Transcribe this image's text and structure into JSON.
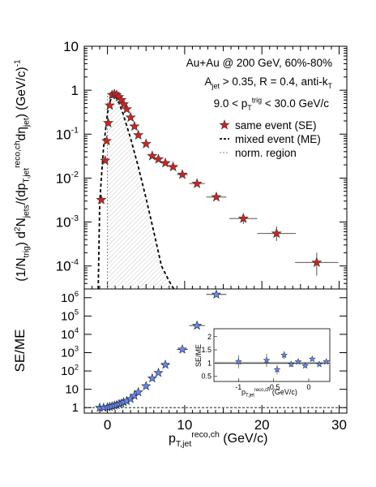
{
  "chart_data": [
    {
      "type": "scatter",
      "panel": "top",
      "yscale": "log",
      "xlim": [
        -3,
        31
      ],
      "ylim": [
        3e-05,
        10
      ],
      "ylabel": "(1/N_trig) d²N_jets/(dp_T,jet^reco,ch dη_jet) (GeV/c)^-1",
      "ytick_labels": [
        "10",
        "1",
        "10^-1",
        "10^-2",
        "10^-3",
        "10^-4"
      ],
      "annotations": [
        "Au+Au @ 200 GeV, 60%-80%",
        "A_jet > 0.35, R = 0.4, anti-k_T",
        "9.0 < p_T^trig < 30.0 GeV/c"
      ],
      "legend": {
        "placement": "top-right",
        "entries": [
          "same event (SE)",
          "mixed event (ME)",
          "norm. region"
        ]
      },
      "series": [
        {
          "name": "same event (SE)",
          "marker": "star",
          "color": "#d42020",
          "points": [
            {
              "x": -0.8,
              "y": 0.0032,
              "xerr": 0
            },
            {
              "x": -0.3,
              "y": 0.025,
              "xerr": 0
            },
            {
              "x": -0.1,
              "y": 0.07,
              "xerr": 0
            },
            {
              "x": 0.1,
              "y": 0.18,
              "xerr": 0
            },
            {
              "x": 0.3,
              "y": 0.45,
              "xerr": 0
            },
            {
              "x": 0.6,
              "y": 0.78,
              "xerr": 0
            },
            {
              "x": 0.9,
              "y": 0.82,
              "xerr": 0
            },
            {
              "x": 1.2,
              "y": 0.78,
              "xerr": 0
            },
            {
              "x": 1.5,
              "y": 0.7,
              "xerr": 0
            },
            {
              "x": 1.8,
              "y": 0.6,
              "xerr": 0
            },
            {
              "x": 2.1,
              "y": 0.48,
              "xerr": 0
            },
            {
              "x": 2.5,
              "y": 0.37,
              "xerr": 0
            },
            {
              "x": 3.0,
              "y": 0.24,
              "xerr": 0
            },
            {
              "x": 3.5,
              "y": 0.15,
              "xerr": 0
            },
            {
              "x": 4.0,
              "y": 0.095,
              "xerr": 0
            },
            {
              "x": 5.0,
              "y": 0.06,
              "xerr": 0
            },
            {
              "x": 5.8,
              "y": 0.032,
              "xerr": 0.4
            },
            {
              "x": 6.6,
              "y": 0.027,
              "xerr": 0.4
            },
            {
              "x": 7.5,
              "y": 0.022,
              "xerr": 0.5
            },
            {
              "x": 8.5,
              "y": 0.018,
              "xerr": 0.5
            },
            {
              "x": 9.7,
              "y": 0.012,
              "xerr": 0.7
            },
            {
              "x": 11.6,
              "y": 0.0075,
              "xerr": 1.0
            },
            {
              "x": 14.1,
              "y": 0.0037,
              "xerr": 1.3
            },
            {
              "x": 17.6,
              "y": 0.0012,
              "xerr": 1.8,
              "yerr": [
                0.0009,
                0.0016
              ]
            },
            {
              "x": 21.9,
              "y": 0.00055,
              "xerr": 2.5,
              "yerr": [
                0.00037,
                0.0008
              ]
            },
            {
              "x": 27.1,
              "y": 0.00012,
              "xerr": 2.8,
              "yerr": [
                6e-05,
                0.0002
              ]
            }
          ]
        },
        {
          "name": "mixed event (ME)",
          "style": "dashed",
          "x": [
            -1.2,
            -1.0,
            -0.5,
            0.0,
            0.5,
            0.8,
            1.0,
            1.5,
            2.0,
            3.0,
            4.0,
            5.0,
            6.0,
            7.0,
            8.0,
            8.6
          ],
          "y": [
            3e-05,
            0.003,
            0.05,
            0.3,
            0.7,
            0.8,
            0.75,
            0.5,
            0.3,
            0.08,
            0.018,
            0.0035,
            0.0006,
            0.0001,
            4.5e-05,
            3e-05
          ]
        },
        {
          "name": "norm. region",
          "style": "dotted",
          "x": [
            0,
            0
          ],
          "y": [
            3e-05,
            0.8
          ]
        }
      ]
    },
    {
      "type": "scatter",
      "panel": "bottom",
      "yscale": "log",
      "xlim": [
        -3,
        31
      ],
      "ylim": [
        0.5,
        3000000
      ],
      "xlabel": "p_T,jet^reco,ch (GeV/c)",
      "ylabel": "SE/ME",
      "xtick_labels": [
        "0",
        "10",
        "20",
        "30"
      ],
      "ytick_labels": [
        "1",
        "10",
        "10^2",
        "10^3",
        "10^4",
        "10^5",
        "10^6"
      ],
      "reference_line": 1,
      "series": [
        {
          "name": "SE/ME",
          "marker": "star",
          "color": "#6688ee",
          "points": [
            {
              "x": -1.0,
              "y": 1.0
            },
            {
              "x": -0.5,
              "y": 1.0
            },
            {
              "x": 0.0,
              "y": 1.05
            },
            {
              "x": 0.3,
              "y": 1.1
            },
            {
              "x": 0.6,
              "y": 1.2
            },
            {
              "x": 0.9,
              "y": 1.3
            },
            {
              "x": 1.2,
              "y": 1.4
            },
            {
              "x": 1.5,
              "y": 1.6
            },
            {
              "x": 1.8,
              "y": 1.7
            },
            {
              "x": 2.1,
              "y": 2.0
            },
            {
              "x": 2.5,
              "y": 2.3
            },
            {
              "x": 3.0,
              "y": 3.0
            },
            {
              "x": 3.5,
              "y": 4.5
            },
            {
              "x": 4.0,
              "y": 7
            },
            {
              "x": 5.0,
              "y": 15
            },
            {
              "x": 5.8,
              "y": 40,
              "xerr": 0.4
            },
            {
              "x": 6.6,
              "y": 80,
              "xerr": 0.4
            },
            {
              "x": 7.5,
              "y": 220,
              "xerr": 0.5
            },
            {
              "x": 9.7,
              "y": 1500,
              "xerr": 0.7
            },
            {
              "x": 11.6,
              "y": 30000,
              "xerr": 1.0
            },
            {
              "x": 14.1,
              "y": 1500000,
              "xerr": 1.3
            }
          ]
        }
      ]
    },
    {
      "type": "scatter",
      "panel": "inset",
      "xlim": [
        -1.35,
        0.3
      ],
      "ylim": [
        0.3,
        2.3
      ],
      "xlabel": "p_T,jet^reco,ch (GeV/c)",
      "ylabel": "SE/ME",
      "xtick_labels": [
        "-1",
        "-0.5",
        "0"
      ],
      "ytick_labels": [
        "0.5",
        "1",
        "1.5",
        "2"
      ],
      "reference_line": 1,
      "band": [
        0.95,
        1.05
      ],
      "series": [
        {
          "name": "SE/ME",
          "marker": "star",
          "color": "#6688ee",
          "points": [
            {
              "x": -1.0,
              "y": 1.05,
              "err": 0.25
            },
            {
              "x": -0.6,
              "y": 1.1,
              "err": 0.25
            },
            {
              "x": -0.45,
              "y": 0.75,
              "err": 0.18
            },
            {
              "x": -0.35,
              "y": 1.3,
              "err": 0.15
            },
            {
              "x": -0.25,
              "y": 0.95,
              "err": 0.1
            },
            {
              "x": -0.15,
              "y": 1.05,
              "err": 0.08
            },
            {
              "x": -0.05,
              "y": 0.9,
              "err": 0.07
            },
            {
              "x": 0.05,
              "y": 1.15,
              "err": 0.06
            },
            {
              "x": 0.15,
              "y": 0.95,
              "err": 0.05
            },
            {
              "x": 0.25,
              "y": 1.05,
              "err": 0.04
            }
          ]
        }
      ]
    }
  ]
}
